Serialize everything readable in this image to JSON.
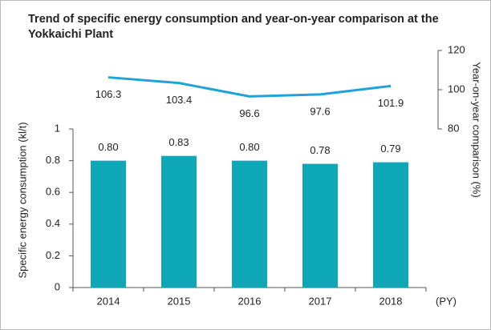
{
  "chart_data": {
    "type": "bar_line",
    "title": "Trend of specific energy consumption and year-on-year comparison at the Yokkaichi Plant",
    "ylabel": "Specific energy consumption (kl/t)",
    "y2label": "Year-on-year comparison (%)",
    "xlabel": "(PY)",
    "categories": [
      "2014",
      "2015",
      "2016",
      "2017",
      "2018"
    ],
    "series": [
      {
        "name": "Specific energy consumption",
        "type": "bar",
        "color": "#0ea7b8",
        "values": [
          0.8,
          0.83,
          0.8,
          0.78,
          0.79
        ],
        "value_labels": [
          "0.80",
          "0.83",
          "0.80",
          "0.78",
          "0.79"
        ]
      },
      {
        "name": "Year-on-year comparison",
        "type": "line",
        "axis": "y2",
        "color": "#1fa3d8",
        "values": [
          106.3,
          103.4,
          96.6,
          97.6,
          101.9
        ]
      }
    ],
    "ylim": [
      0,
      1
    ],
    "yticks": [
      0,
      0.2,
      0.4,
      0.6,
      0.8,
      1
    ],
    "y2lim": [
      80,
      120
    ],
    "y2ticks": [
      80,
      100,
      120
    ]
  }
}
